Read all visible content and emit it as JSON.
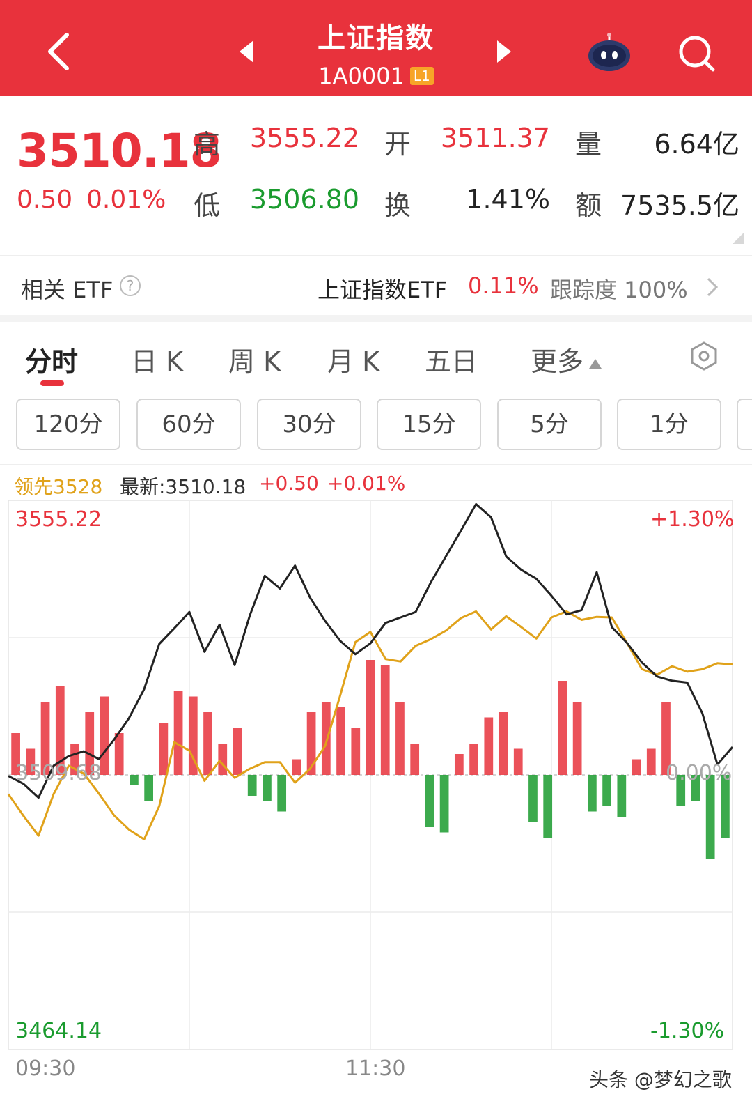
{
  "header": {
    "title": "上证指数",
    "code": "1A0001",
    "level_badge": "L1"
  },
  "quote": {
    "price": "3510.18",
    "change": "0.50",
    "change_pct": "0.01%",
    "high_label": "高",
    "high": "3555.22",
    "open_label": "开",
    "open": "3511.37",
    "volume_label": "量",
    "volume": "6.64亿",
    "low_label": "低",
    "low": "3506.80",
    "turnover_label": "换",
    "turnover": "1.41%",
    "amount_label": "额",
    "amount": "7535.5亿"
  },
  "etf": {
    "label": "相关 ETF",
    "help": "?",
    "name": "上证指数ETF",
    "pct": "0.11%",
    "tracking": "跟踪度 100%"
  },
  "tabs": [
    {
      "label": "分时"
    },
    {
      "label": "日 K"
    },
    {
      "label": "周 K"
    },
    {
      "label": "月 K"
    },
    {
      "label": "五日"
    },
    {
      "label": "更多"
    }
  ],
  "periods": [
    "120分",
    "60分",
    "30分",
    "15分",
    "5分",
    "1分"
  ],
  "info": {
    "lead": "领先3528",
    "latest": "最新:3510.18",
    "change": "+0.50",
    "change_pct": "+0.01%"
  },
  "chart_data": {
    "type": "line",
    "y_max_label": "3555.22",
    "y_min_label": "3464.14",
    "y_mid_label": "3509.68",
    "pct_max_label": "+1.30%",
    "pct_min_label": "-1.30%",
    "pct_mid_label": "0.00%",
    "x_labels": [
      "09:30",
      "11:30"
    ],
    "ylim": [
      3464.14,
      3555.22
    ],
    "base": 3509.68,
    "colors": {
      "price": "#222222",
      "lead": "#e0a21a",
      "up": "#e8323c",
      "down": "#1a9b2e"
    },
    "series": [
      {
        "values": [
          3509.5,
          3508.2,
          3505.9,
          3511.2,
          3512.8,
          3513.6,
          3512.3,
          3515.5,
          3519.1,
          3523.9,
          3531.4,
          3534.0,
          3536.7,
          3530.1,
          3534.6,
          3527.9,
          3536.1,
          3542.7,
          3540.6,
          3544.4,
          3539.1,
          3535.2,
          3531.9,
          3529.7,
          3531.5,
          3534.9,
          3535.8,
          3536.7,
          3541.6,
          3545.9,
          3550.2,
          3554.6,
          3552.4,
          3545.9,
          3543.7,
          3542.2,
          3539.4,
          3536.3,
          3537.0,
          3543.3,
          3534.2,
          3531.6,
          3528.3,
          3526.0,
          3525.3,
          3525.0,
          3519.9,
          3511.4,
          3514.3
        ]
      },
      {
        "values": [
          3506.5,
          3502.9,
          3499.6,
          3506.5,
          3511.2,
          3509.9,
          3506.6,
          3503.0,
          3500.6,
          3499.0,
          3504.5,
          3515.1,
          3513.7,
          3508.7,
          3512.0,
          3509.2,
          3510.7,
          3511.8,
          3511.8,
          3508.4,
          3510.7,
          3514.5,
          3522.9,
          3531.7,
          3533.4,
          3528.9,
          3528.5,
          3531.1,
          3532.2,
          3533.6,
          3535.7,
          3536.8,
          3533.8,
          3536.0,
          3534.2,
          3532.3,
          3535.8,
          3536.8,
          3535.4,
          3535.9,
          3535.8,
          3531.6,
          3527.2,
          3526.3,
          3527.7,
          3526.8,
          3527.2,
          3528.2,
          3528.0
        ]
      }
    ],
    "volume_net": [
      8,
      5,
      14,
      17,
      6,
      12,
      15,
      8,
      -2,
      -5,
      10,
      16,
      15,
      12,
      6,
      9,
      -4,
      -5,
      -7,
      3,
      12,
      14,
      13,
      9,
      22,
      21,
      14,
      6,
      -10,
      -11,
      4,
      6,
      11,
      12,
      5,
      -9,
      -12,
      18,
      14,
      -7,
      -6,
      -8,
      3,
      5,
      14,
      -6,
      -5,
      -16,
      -12
    ]
  },
  "watermark": "头条 @梦幻之歌"
}
